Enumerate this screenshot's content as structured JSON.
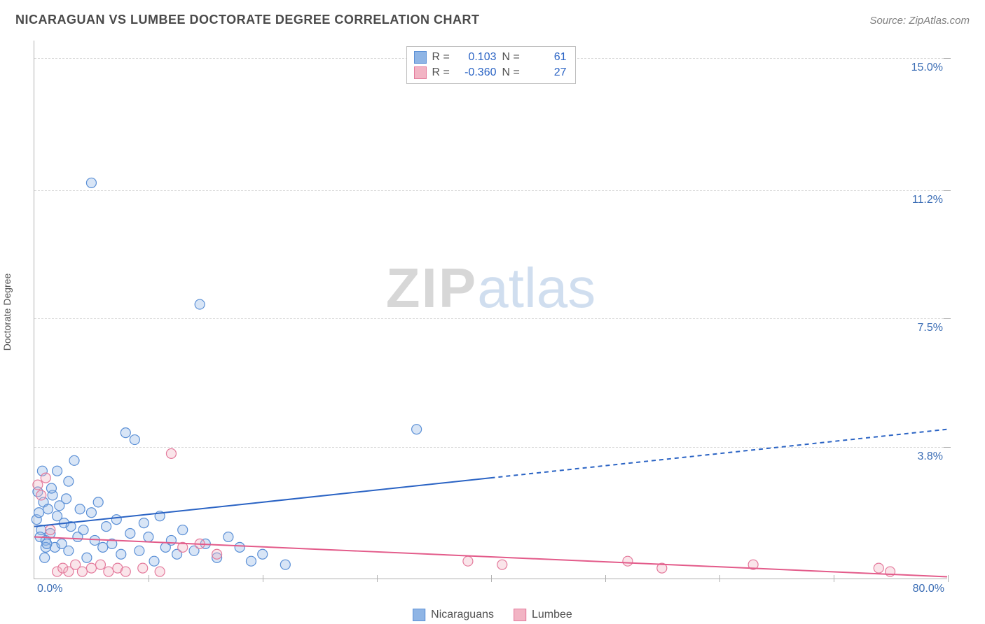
{
  "header": {
    "title": "NICARAGUAN VS LUMBEE DOCTORATE DEGREE CORRELATION CHART",
    "source": "Source: ZipAtlas.com"
  },
  "watermark": {
    "part1": "ZIP",
    "part2": "atlas"
  },
  "ylabel": "Doctorate Degree",
  "chart": {
    "type": "scatter",
    "xlim": [
      0,
      80
    ],
    "ylim": [
      0,
      15.5
    ],
    "xticks": {
      "min_label": "0.0%",
      "max_label": "80.0%",
      "marks": [
        10,
        20,
        30,
        40,
        50,
        60,
        70,
        80
      ]
    },
    "yticks": [
      {
        "v": 3.8,
        "label": "3.8%"
      },
      {
        "v": 7.5,
        "label": "7.5%"
      },
      {
        "v": 11.2,
        "label": "11.2%"
      },
      {
        "v": 15.0,
        "label": "15.0%"
      }
    ],
    "grid_color": "#d8d8d8",
    "axis_color": "#b0b0b0",
    "background_color": "#ffffff",
    "point_radius": 7,
    "series": [
      {
        "key": "nicaraguans",
        "label": "Nicaraguans",
        "color_fill": "#8fb5e5",
        "color_stroke": "#5a8fd6",
        "R": "0.103",
        "N": "61",
        "trend": {
          "x0": 0,
          "y0": 1.5,
          "x_solid_end": 40,
          "x1": 80,
          "y1": 4.3,
          "color": "#2a63c4",
          "width": 2
        },
        "points": [
          [
            0.2,
            1.7
          ],
          [
            0.4,
            1.9
          ],
          [
            0.6,
            1.4
          ],
          [
            0.8,
            2.2
          ],
          [
            1.0,
            1.1
          ],
          [
            1.2,
            2.0
          ],
          [
            1.4,
            1.3
          ],
          [
            1.6,
            2.4
          ],
          [
            1.8,
            0.9
          ],
          [
            2.0,
            1.8
          ],
          [
            2.2,
            2.1
          ],
          [
            2.4,
            1.0
          ],
          [
            2.6,
            1.6
          ],
          [
            2.8,
            2.3
          ],
          [
            3.0,
            0.8
          ],
          [
            3.2,
            1.5
          ],
          [
            3.5,
            3.4
          ],
          [
            3.8,
            1.2
          ],
          [
            4.0,
            2.0
          ],
          [
            4.3,
            1.4
          ],
          [
            4.6,
            0.6
          ],
          [
            5.0,
            1.9
          ],
          [
            5.3,
            1.1
          ],
          [
            5.6,
            2.2
          ],
          [
            6.0,
            0.9
          ],
          [
            6.3,
            1.5
          ],
          [
            6.8,
            1.0
          ],
          [
            7.2,
            1.7
          ],
          [
            7.6,
            0.7
          ],
          [
            8.0,
            4.2
          ],
          [
            8.4,
            1.3
          ],
          [
            8.8,
            4.0
          ],
          [
            9.2,
            0.8
          ],
          [
            9.6,
            1.6
          ],
          [
            10.0,
            1.2
          ],
          [
            10.5,
            0.5
          ],
          [
            11.0,
            1.8
          ],
          [
            11.5,
            0.9
          ],
          [
            12.0,
            1.1
          ],
          [
            12.5,
            0.7
          ],
          [
            13.0,
            1.4
          ],
          [
            14.0,
            0.8
          ],
          [
            15.0,
            1.0
          ],
          [
            16.0,
            0.6
          ],
          [
            17.0,
            1.2
          ],
          [
            18.0,
            0.9
          ],
          [
            19.0,
            0.5
          ],
          [
            20.0,
            0.7
          ],
          [
            5.0,
            11.4
          ],
          [
            14.5,
            7.9
          ],
          [
            33.5,
            4.3
          ],
          [
            22.0,
            0.4
          ],
          [
            1.0,
            0.9
          ],
          [
            1.5,
            2.6
          ],
          [
            0.5,
            1.2
          ],
          [
            0.3,
            2.5
          ],
          [
            2.0,
            3.1
          ],
          [
            3.0,
            2.8
          ],
          [
            0.7,
            3.1
          ],
          [
            0.9,
            0.6
          ],
          [
            1.1,
            1.0
          ]
        ]
      },
      {
        "key": "lumbee",
        "label": "Lumbee",
        "color_fill": "#f2b4c4",
        "color_stroke": "#e47a9c",
        "R": "-0.360",
        "N": "27",
        "trend": {
          "x0": 0,
          "y0": 1.2,
          "x_solid_end": 80,
          "x1": 80,
          "y1": 0.05,
          "color": "#e35b8a",
          "width": 2
        },
        "points": [
          [
            0.3,
            2.7
          ],
          [
            0.6,
            2.4
          ],
          [
            1.0,
            2.9
          ],
          [
            1.4,
            1.4
          ],
          [
            2.0,
            0.2
          ],
          [
            2.5,
            0.3
          ],
          [
            3.0,
            0.2
          ],
          [
            3.6,
            0.4
          ],
          [
            4.2,
            0.2
          ],
          [
            5.0,
            0.3
          ],
          [
            5.8,
            0.4
          ],
          [
            6.5,
            0.2
          ],
          [
            7.3,
            0.3
          ],
          [
            8.0,
            0.2
          ],
          [
            9.5,
            0.3
          ],
          [
            11.0,
            0.2
          ],
          [
            12.0,
            3.6
          ],
          [
            13.0,
            0.9
          ],
          [
            14.5,
            1.0
          ],
          [
            16.0,
            0.7
          ],
          [
            38.0,
            0.5
          ],
          [
            41.0,
            0.4
          ],
          [
            52.0,
            0.5
          ],
          [
            55.0,
            0.3
          ],
          [
            63.0,
            0.4
          ],
          [
            74.0,
            0.3
          ],
          [
            75.0,
            0.2
          ]
        ]
      }
    ]
  },
  "legend_top": {
    "r_label": "R =",
    "n_label": "N ="
  }
}
